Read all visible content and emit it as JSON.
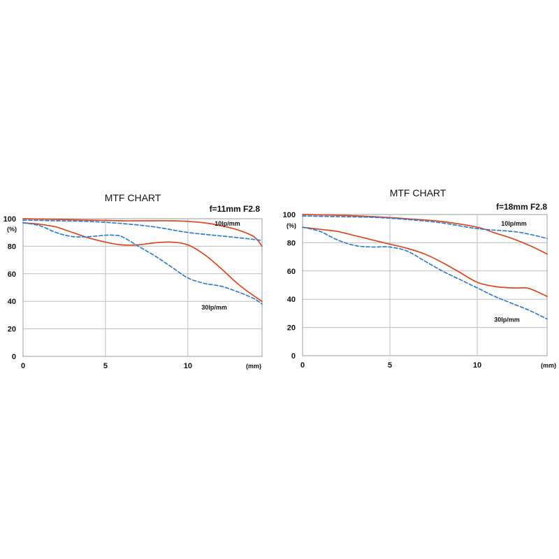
{
  "colors": {
    "sagittal": "#e0451b",
    "meridional": "#2f7fd0",
    "grid": "#bdbdbd"
  },
  "chart_data": [
    {
      "type": "line",
      "title": "MTF CHART",
      "subtitle": "f=11mm F2.8",
      "ylabel": "(%)",
      "xlabel": "(mm)",
      "xlim": [
        0,
        14.5
      ],
      "ylim": [
        0,
        100
      ],
      "xticks": [
        0,
        5,
        10
      ],
      "yticks": [
        0,
        20,
        40,
        60,
        80,
        100
      ],
      "grid": true,
      "annotations": [
        {
          "text": "10lp/mm",
          "x": 12.4,
          "y": 95
        },
        {
          "text": "30lp/mm",
          "x": 11.6,
          "y": 34
        }
      ],
      "series": [
        {
          "name": "",
          "style": "solid",
          "color": "sagittal",
          "x": [
            0,
            2,
            4,
            6,
            7,
            8,
            9,
            10,
            11,
            12,
            13,
            14,
            14.5
          ],
          "y": [
            100,
            99.5,
            99,
            98.5,
            98.5,
            98.5,
            98.5,
            98,
            97,
            95,
            92,
            87,
            80
          ]
        },
        {
          "name": "",
          "style": "dashed",
          "color": "meridional",
          "x": [
            0,
            2,
            4,
            6,
            8,
            10,
            12,
            14,
            14.5
          ],
          "y": [
            99,
            98.5,
            98,
            96.5,
            94,
            90,
            87.5,
            85,
            84
          ]
        },
        {
          "name": "",
          "style": "solid",
          "color": "sagittal",
          "x": [
            0,
            1,
            2,
            3,
            4,
            5,
            6,
            7,
            8,
            9,
            10,
            11,
            12,
            13,
            14,
            14.5
          ],
          "y": [
            97,
            96,
            94,
            90,
            86,
            83,
            81,
            81,
            82.5,
            83,
            81,
            74,
            64,
            53,
            44,
            40
          ]
        },
        {
          "name": "",
          "style": "dashed",
          "color": "meridional",
          "x": [
            0,
            1,
            2,
            3,
            4,
            5,
            5.5,
            6,
            7,
            8,
            9,
            10,
            11,
            12,
            13,
            14,
            14.5
          ],
          "y": [
            97,
            95,
            90,
            87,
            87,
            88,
            88,
            87,
            80,
            73,
            65,
            57,
            53,
            51,
            47,
            42,
            38
          ]
        }
      ]
    },
    {
      "type": "line",
      "title": "MTF CHART",
      "subtitle": "f=18mm F2.8",
      "ylabel": "(%)",
      "xlabel": "(mm)",
      "xlim": [
        0,
        14
      ],
      "ylim": [
        0,
        100
      ],
      "xticks": [
        0,
        5,
        10
      ],
      "yticks": [
        0,
        20,
        40,
        60,
        80,
        100
      ],
      "grid": true,
      "annotations": [
        {
          "text": "10lp/mm",
          "x": 12.1,
          "y": 92
        },
        {
          "text": "30lp/mm",
          "x": 11.7,
          "y": 24
        }
      ],
      "series": [
        {
          "name": "",
          "style": "solid",
          "color": "sagittal",
          "x": [
            0,
            2,
            4,
            6,
            8,
            10,
            11,
            12,
            13,
            14
          ],
          "y": [
            100,
            99.5,
            98.5,
            97,
            95,
            91,
            87,
            83,
            78,
            72
          ]
        },
        {
          "name": "",
          "style": "dashed",
          "color": "meridional",
          "x": [
            0,
            2,
            4,
            6,
            8,
            10,
            12,
            13,
            14
          ],
          "y": [
            99,
            98.5,
            98,
            96.5,
            94,
            90,
            88,
            86,
            83
          ]
        },
        {
          "name": "",
          "style": "solid",
          "color": "sagittal",
          "x": [
            0,
            1,
            2,
            3,
            4,
            5,
            6,
            7,
            8,
            9,
            10,
            11,
            12,
            12.5,
            13,
            14
          ],
          "y": [
            91,
            89.5,
            88,
            85,
            82,
            79,
            76,
            72,
            66,
            59,
            52,
            49,
            48,
            48,
            47.5,
            42
          ]
        },
        {
          "name": "",
          "style": "dashed",
          "color": "meridional",
          "x": [
            0,
            1,
            2,
            3,
            4,
            5,
            6,
            7,
            8,
            9,
            10,
            11,
            12,
            13,
            14
          ],
          "y": [
            91,
            88,
            82,
            78,
            77,
            77,
            74,
            67,
            60,
            54,
            48,
            42,
            37,
            32,
            26
          ]
        }
      ]
    }
  ]
}
